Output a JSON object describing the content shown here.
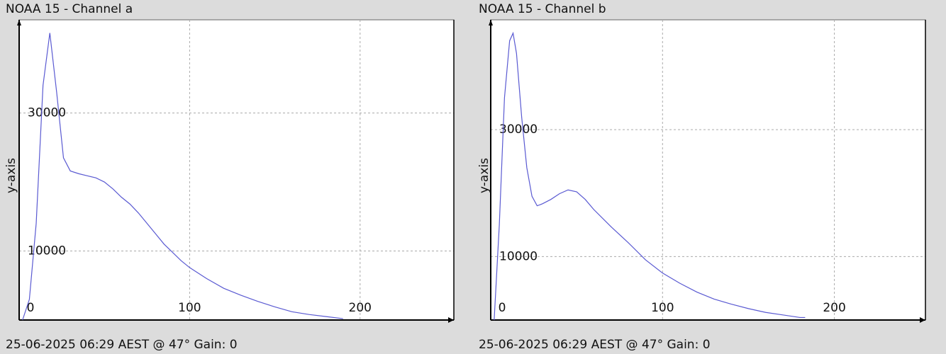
{
  "chart_data": [
    {
      "type": "line",
      "title": "NOAA 15 - Channel a",
      "ylabel": "y-axis",
      "footer": "25-06-2025 06:29 AEST @ 47° Gain: 0",
      "color": "#5a5ad2",
      "grid": true,
      "xlim": [
        0,
        255
      ],
      "ylim": [
        0,
        43500
      ],
      "xticks": [
        0,
        100,
        200
      ],
      "yticks": [
        10000,
        30000
      ],
      "x": [
        2,
        6,
        10,
        14,
        18,
        22,
        26,
        30,
        35,
        40,
        45,
        50,
        55,
        60,
        65,
        70,
        75,
        80,
        85,
        90,
        95,
        100,
        110,
        120,
        130,
        140,
        150,
        160,
        170,
        180,
        190
      ],
      "values": [
        0,
        3000,
        14000,
        34000,
        41600,
        33000,
        23500,
        21600,
        21200,
        20900,
        20600,
        20000,
        19000,
        17800,
        16800,
        15500,
        14000,
        12500,
        11000,
        9800,
        8600,
        7600,
        6000,
        4600,
        3600,
        2700,
        1900,
        1200,
        800,
        500,
        200
      ]
    },
    {
      "type": "line",
      "title": "NOAA 15 - Channel b",
      "ylabel": "y-axis",
      "footer": "25-06-2025 06:29 AEST @ 47° Gain: 0",
      "color": "#5a5ad2",
      "grid": true,
      "xlim": [
        0,
        253
      ],
      "ylim": [
        0,
        47300
      ],
      "xticks": [
        0,
        100,
        200
      ],
      "yticks": [
        10000,
        30000
      ],
      "x": [
        2,
        5,
        8,
        11,
        13,
        15,
        18,
        21,
        24,
        27,
        30,
        35,
        40,
        45,
        50,
        55,
        60,
        70,
        80,
        90,
        100,
        110,
        120,
        130,
        140,
        150,
        160,
        170,
        180,
        183
      ],
      "values": [
        0,
        15000,
        35000,
        44000,
        45200,
        42000,
        32000,
        24000,
        19500,
        18000,
        18300,
        19000,
        19900,
        20500,
        20200,
        19000,
        17400,
        14700,
        12200,
        9500,
        7400,
        5800,
        4400,
        3300,
        2500,
        1800,
        1200,
        800,
        400,
        400
      ]
    }
  ]
}
